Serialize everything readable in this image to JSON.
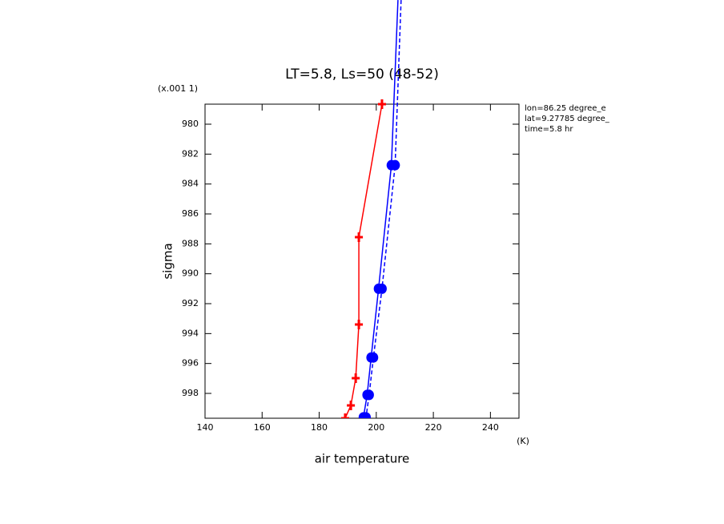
{
  "chart_data": {
    "type": "line",
    "title": "LT=5.8, Ls=50 (48-52)",
    "x_label": "air temperature",
    "x_unit": "(K)",
    "y_label": "sigma",
    "y_multiplier": "(x.001 1)",
    "annotations": [
      "lon=86.25 degree_e",
      "lat=9.27785 degree_",
      "time=5.8 hr"
    ],
    "xlim": [
      140,
      250
    ],
    "xticks": [
      140,
      160,
      180,
      200,
      220,
      240
    ],
    "ylim": [
      978.66,
      999.66
    ],
    "yticks": [
      980,
      982,
      984,
      986,
      988,
      990,
      992,
      994,
      996,
      998
    ],
    "y_inverted": true,
    "series": [
      {
        "color": "#ff0000",
        "marker": "plus",
        "dashed": false,
        "y": [
          978.66,
          987.55,
          993.39,
          996.98,
          998.8,
          999.66
        ],
        "values": [
          202.0,
          193.9,
          193.9,
          192.8,
          191.1,
          189.1
        ]
      },
      {
        "color": "#0000ff",
        "marker": "circle",
        "dashed": false,
        "y": [
          971.7,
          982.74,
          991.0,
          995.6,
          998.1,
          999.6
        ],
        "values": [
          207.6,
          205.3,
          200.8,
          198.2,
          196.8,
          195.5
        ]
      },
      {
        "color": "#0000ff",
        "marker": "circle",
        "dashed": true,
        "y": [
          971.7,
          982.74,
          991.0,
          995.6,
          998.1,
          999.6
        ],
        "values": [
          208.7,
          206.6,
          202.0,
          199.0,
          197.5,
          196.4
        ]
      }
    ]
  }
}
